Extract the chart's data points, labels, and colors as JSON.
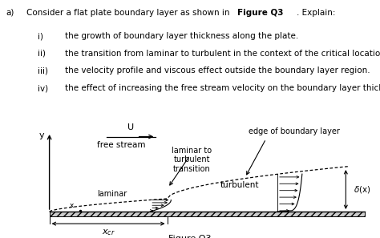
{
  "items": [
    "the growth of boundary layer thickness along the plate.",
    "the transition from laminar to turbulent in the context of the critical location.",
    "the velocity profile and viscous effect outside the boundary layer region.",
    "the effect of increasing the free stream velocity on the boundary layer thickness."
  ],
  "roman_numerals": [
    "i)",
    "ii)",
    "iii)",
    "iv)"
  ],
  "bg_color": "#ffffff",
  "text_color": "#000000",
  "plate_hatch_color": "#555555",
  "fig_title": "Figure Q3",
  "question_prefix": "a)",
  "question_main": "Consider a flat plate boundary layer as shown in ",
  "question_bold": "Figure Q3",
  "question_suffix": ". Explain:",
  "label_U": "U",
  "label_free_stream": "free stream",
  "label_lam_turb": "laminar to\nturbulent\ntransition",
  "label_edge_bl": "edge of boundary layer",
  "label_turbulent": "turbulent",
  "label_laminar": "laminar",
  "label_y": "y",
  "label_xcr": "$x_{cr}$",
  "label_delta": "$\\delta$(x)"
}
